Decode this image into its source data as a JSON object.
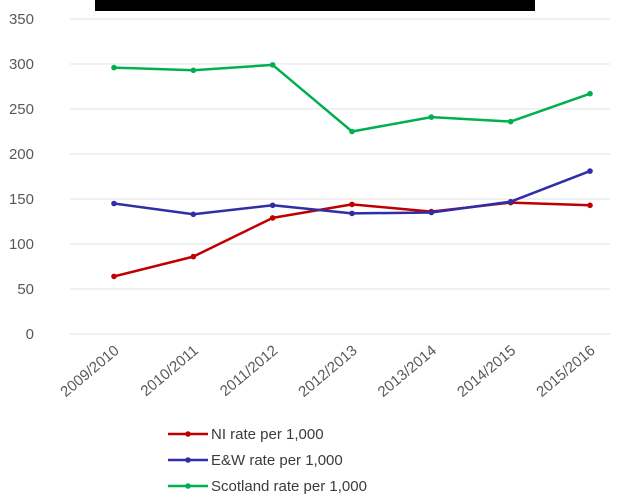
{
  "chart_data": {
    "type": "line",
    "categories": [
      "2009/2010",
      "2010/2011",
      "2011/2012",
      "2012/2013",
      "2013/2014",
      "2014/2015",
      "2015/2016"
    ],
    "series": [
      {
        "name": "NI rate per 1,000",
        "color": "#c00000",
        "values": [
          64,
          86,
          129,
          144,
          136,
          146,
          143
        ]
      },
      {
        "name": "E&W rate per 1,000",
        "color": "#2e2ea6",
        "values": [
          145,
          133,
          143,
          134,
          135,
          147,
          181
        ]
      },
      {
        "name": "Scotland rate per 1,000",
        "color": "#00b050",
        "values": [
          296,
          293,
          299,
          225,
          241,
          236,
          267
        ]
      }
    ],
    "yticks": [
      0,
      50,
      100,
      150,
      200,
      250,
      300,
      350
    ],
    "ylim": [
      0,
      350
    ],
    "grid": true,
    "legend": "bottom",
    "title_bar": "black bar at top (text not legible)"
  }
}
